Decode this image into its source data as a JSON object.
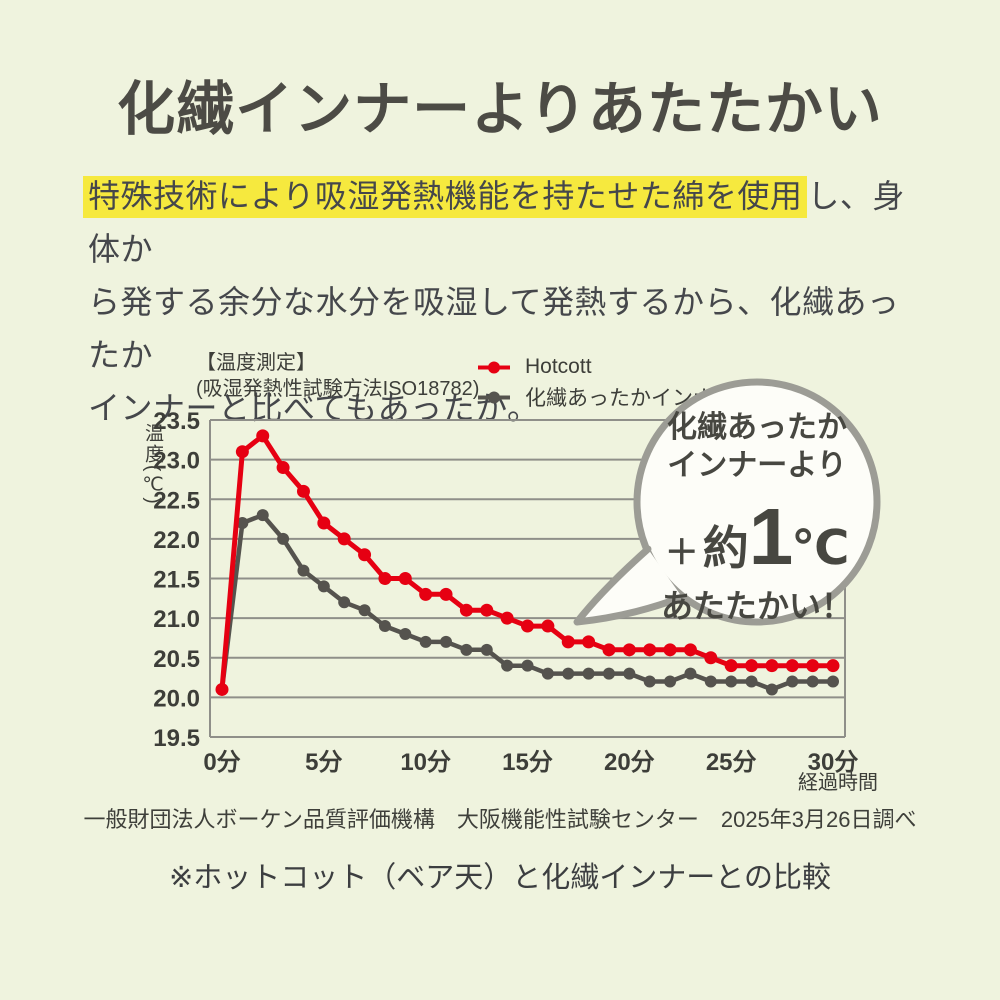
{
  "page": {
    "title": "化繊インナーよりあたたかい"
  },
  "body": {
    "highlight_text": "特殊技術により吸湿発熱機能を持たせた綿を使用",
    "line1_rest": "し、身体か",
    "line2": "ら発する余分な水分を吸湿して発熱するから、化繊あったか",
    "line3": "インナーと比べてもあったか。"
  },
  "chart": {
    "header_line1": "【温度測定】",
    "header_line2": "(吸湿発熱性試験方法ISO18782)",
    "y_axis_title": "温度(℃)",
    "x_axis_title": "経過時間",
    "legend": [
      {
        "label": "Hotcott",
        "color": "#e60012"
      },
      {
        "label": "化繊あったかインナー",
        "color": "#55534e"
      }
    ]
  },
  "chart_data": {
    "type": "line",
    "title": "【温度測定】",
    "subtitle": "(吸湿発熱性試験方法ISO18782)",
    "xlabel": "経過時間",
    "ylabel": "温度(℃)",
    "x_unit": "分",
    "x": [
      0,
      1,
      2,
      3,
      4,
      5,
      6,
      7,
      8,
      9,
      10,
      11,
      12,
      13,
      14,
      15,
      16,
      17,
      18,
      19,
      20,
      21,
      22,
      23,
      24,
      25,
      26,
      27,
      28,
      29,
      30
    ],
    "xticks": [
      0,
      5,
      10,
      15,
      20,
      25,
      30
    ],
    "ylim": [
      19.5,
      23.5
    ],
    "ytick_step": 0.5,
    "grid": true,
    "legend_position": "top-right",
    "series": [
      {
        "name": "Hotcott",
        "color": "#e60012",
        "values": [
          20.1,
          23.1,
          23.3,
          22.9,
          22.6,
          22.2,
          22.0,
          21.8,
          21.5,
          21.5,
          21.3,
          21.3,
          21.1,
          21.1,
          21.0,
          20.9,
          20.9,
          20.7,
          20.7,
          20.6,
          20.6,
          20.6,
          20.6,
          20.6,
          20.5,
          20.4,
          20.4,
          20.4,
          20.4,
          20.4,
          20.4
        ]
      },
      {
        "name": "化繊あったかインナー",
        "color": "#55534e",
        "values": [
          20.1,
          22.2,
          22.3,
          22.0,
          21.6,
          21.4,
          21.2,
          21.1,
          20.9,
          20.8,
          20.7,
          20.7,
          20.6,
          20.6,
          20.4,
          20.4,
          20.3,
          20.3,
          20.3,
          20.3,
          20.3,
          20.2,
          20.2,
          20.3,
          20.2,
          20.2,
          20.2,
          20.1,
          20.2,
          20.2,
          20.2
        ]
      }
    ]
  },
  "bubble": {
    "line1": "化繊あったか",
    "line2": "インナーより",
    "plus": "＋",
    "approx": "約",
    "value": "1",
    "unit": "℃",
    "line4": "あたたかい！"
  },
  "footer": {
    "source": "一般財団法人ボーケン品質評価機構　大阪機能性試験センター　2025年3月26日調べ",
    "note": "※ホットコット（ベア天）と化繊インナーとの比較"
  },
  "colors": {
    "background": "#eff3de",
    "highlight_yellow": "#f6e93e",
    "accent_red": "#e60012",
    "series_gray": "#55534e",
    "grid_gray": "#8f8f89",
    "text_dark": "#45474b",
    "bubble_border": "#9c9c95",
    "bubble_fill": "#fdfdf8"
  }
}
